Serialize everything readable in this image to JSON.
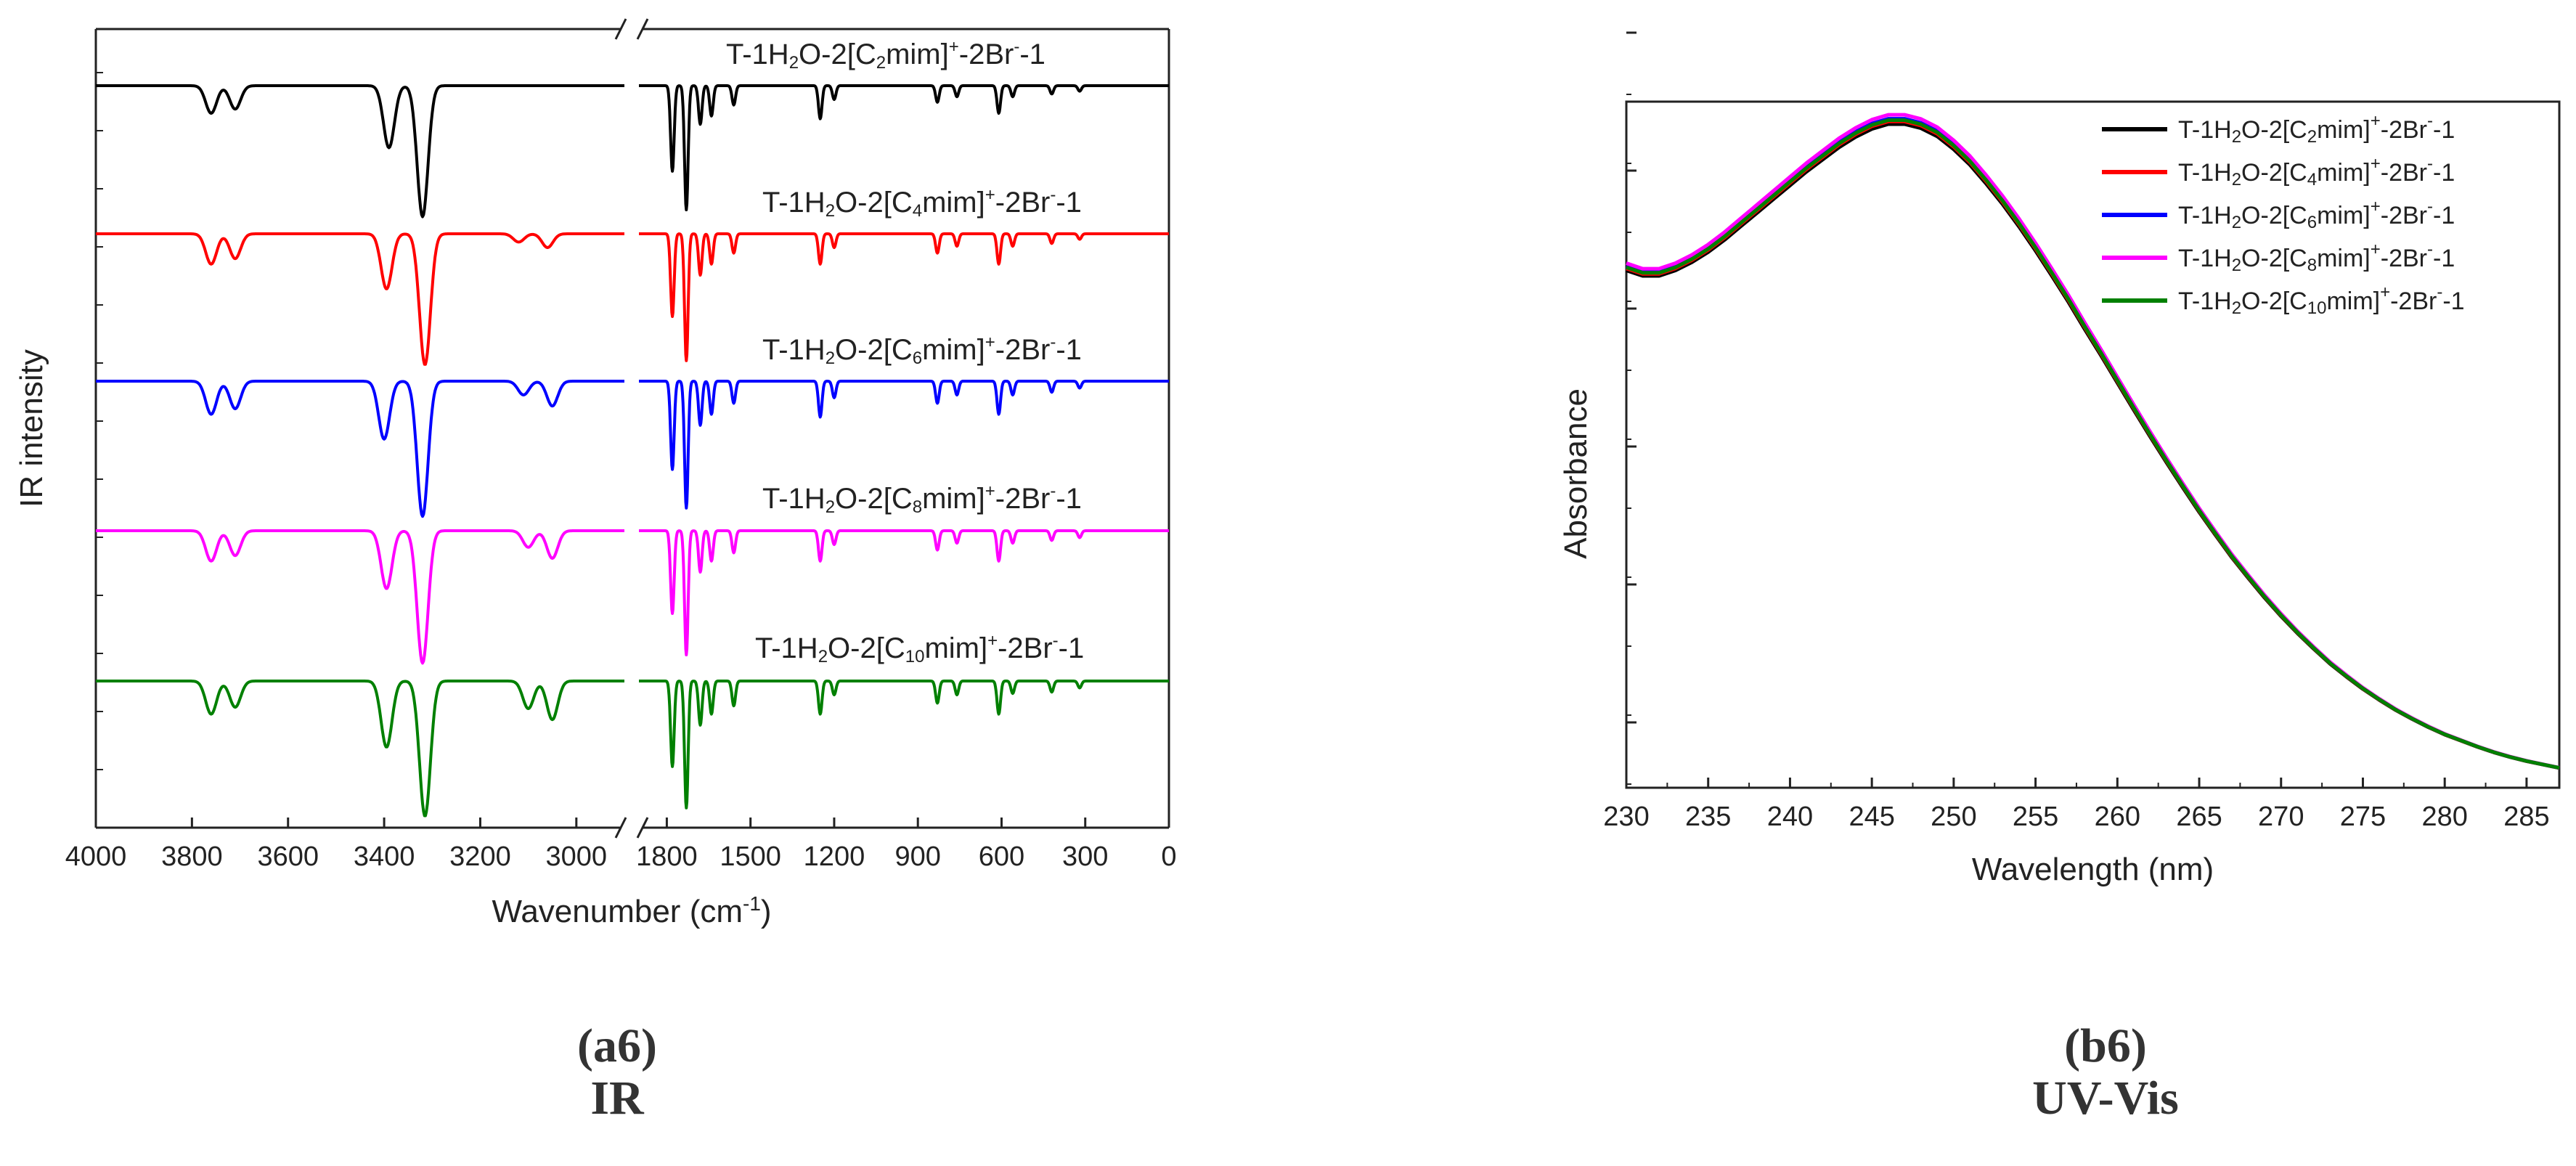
{
  "chart_data": [
    {
      "type": "line",
      "caption_label": "a6",
      "caption_title": "IR",
      "xlabel_main": "Wavenumber (cm",
      "xlabel_sup": "-1",
      "xlabel_end": ")",
      "ylabel": "IR intensity",
      "x_segment_left": {
        "range": [
          4000,
          2900
        ],
        "ticks": [
          "4000",
          "3800",
          "3600",
          "3400",
          "3200",
          "3000"
        ],
        "tick_values": [
          4000,
          3800,
          3600,
          3400,
          3200,
          3000
        ]
      },
      "x_segment_right": {
        "range": [
          1900,
          0
        ],
        "ticks": [
          "1800",
          "1500",
          "1200",
          "900",
          "600",
          "300",
          "0"
        ],
        "tick_values": [
          1800,
          1500,
          1200,
          900,
          600,
          300,
          0
        ]
      },
      "series": [
        {
          "name": "C2",
          "color": "#000000",
          "label_parts": [
            "T-1H",
            "2",
            "O-2[C",
            "2",
            "mim]",
            "+",
            "-2Br",
            "-",
            "-1"
          ],
          "peaks": [
            [
              3760,
              0.2
            ],
            [
              3710,
              0.17
            ],
            [
              3390,
              0.45
            ],
            [
              3320,
              0.95
            ],
            [
              1780,
              0.62
            ],
            [
              1730,
              0.9
            ],
            [
              1680,
              0.28
            ],
            [
              1640,
              0.22
            ],
            [
              1560,
              0.14
            ],
            [
              1250,
              0.24
            ],
            [
              1200,
              0.1
            ],
            [
              830,
              0.12
            ],
            [
              760,
              0.08
            ],
            [
              610,
              0.2
            ],
            [
              560,
              0.08
            ],
            [
              420,
              0.06
            ],
            [
              320,
              0.04
            ]
          ]
        },
        {
          "name": "C4",
          "color": "#ff0000",
          "label_parts": [
            "T-1H",
            "2",
            "O-2[C",
            "4",
            "mim]",
            "+",
            "-2Br",
            "-",
            "-1"
          ],
          "peaks": [
            [
              3760,
              0.22
            ],
            [
              3710,
              0.18
            ],
            [
              3395,
              0.4
            ],
            [
              3315,
              0.95
            ],
            [
              3120,
              0.06
            ],
            [
              3060,
              0.1
            ],
            [
              1780,
              0.6
            ],
            [
              1730,
              0.92
            ],
            [
              1680,
              0.3
            ],
            [
              1640,
              0.22
            ],
            [
              1560,
              0.14
            ],
            [
              1250,
              0.22
            ],
            [
              1200,
              0.1
            ],
            [
              830,
              0.14
            ],
            [
              760,
              0.09
            ],
            [
              610,
              0.22
            ],
            [
              560,
              0.09
            ],
            [
              420,
              0.07
            ],
            [
              320,
              0.04
            ]
          ]
        },
        {
          "name": "C6",
          "color": "#0000ff",
          "label_parts": [
            "T-1H",
            "2",
            "O-2[C",
            "6",
            "mim]",
            "+",
            "-2Br",
            "-",
            "-1"
          ],
          "peaks": [
            [
              3760,
              0.24
            ],
            [
              3710,
              0.2
            ],
            [
              3400,
              0.42
            ],
            [
              3320,
              0.98
            ],
            [
              3110,
              0.1
            ],
            [
              3050,
              0.18
            ],
            [
              1780,
              0.64
            ],
            [
              1730,
              0.92
            ],
            [
              1680,
              0.32
            ],
            [
              1640,
              0.24
            ],
            [
              1560,
              0.16
            ],
            [
              1250,
              0.26
            ],
            [
              1200,
              0.12
            ],
            [
              830,
              0.16
            ],
            [
              760,
              0.1
            ],
            [
              610,
              0.24
            ],
            [
              560,
              0.1
            ],
            [
              420,
              0.08
            ],
            [
              320,
              0.05
            ]
          ]
        },
        {
          "name": "C8",
          "color": "#ff00ff",
          "label_parts": [
            "T-1H",
            "2",
            "O-2[C",
            "8",
            "mim]",
            "+",
            "-2Br",
            "-",
            "-1"
          ],
          "peaks": [
            [
              3760,
              0.22
            ],
            [
              3710,
              0.18
            ],
            [
              3395,
              0.42
            ],
            [
              3320,
              0.96
            ],
            [
              3100,
              0.12
            ],
            [
              3050,
              0.2
            ],
            [
              1780,
              0.6
            ],
            [
              1730,
              0.9
            ],
            [
              1680,
              0.3
            ],
            [
              1640,
              0.22
            ],
            [
              1560,
              0.16
            ],
            [
              1250,
              0.22
            ],
            [
              1200,
              0.1
            ],
            [
              830,
              0.14
            ],
            [
              760,
              0.09
            ],
            [
              610,
              0.22
            ],
            [
              560,
              0.09
            ],
            [
              420,
              0.07
            ],
            [
              320,
              0.05
            ]
          ]
        },
        {
          "name": "C10",
          "color": "#008000",
          "label_parts": [
            "T-1H",
            "2",
            "O-2[C",
            "10",
            "mim]",
            "+",
            "-2Br",
            "-",
            "-1"
          ],
          "peaks": [
            [
              3760,
              0.24
            ],
            [
              3710,
              0.19
            ],
            [
              3395,
              0.48
            ],
            [
              3315,
              0.98
            ],
            [
              3100,
              0.2
            ],
            [
              3050,
              0.28
            ],
            [
              1780,
              0.62
            ],
            [
              1730,
              0.92
            ],
            [
              1680,
              0.32
            ],
            [
              1640,
              0.24
            ],
            [
              1560,
              0.18
            ],
            [
              1250,
              0.24
            ],
            [
              1200,
              0.1
            ],
            [
              830,
              0.16
            ],
            [
              760,
              0.1
            ],
            [
              610,
              0.24
            ],
            [
              560,
              0.09
            ],
            [
              420,
              0.08
            ],
            [
              320,
              0.05
            ]
          ]
        }
      ]
    },
    {
      "type": "line",
      "caption_label": "b6",
      "caption_title": "UV-Vis",
      "xlabel": "Wavelength (nm)",
      "ylabel": "Absorbance",
      "xlim": [
        230,
        287
      ],
      "ylim": [
        0,
        1
      ],
      "xticks": [
        "230",
        "235",
        "240",
        "245",
        "250",
        "255",
        "260",
        "265",
        "270",
        "275",
        "280",
        "285"
      ],
      "xtick_values": [
        230,
        235,
        240,
        245,
        250,
        255,
        260,
        265,
        270,
        275,
        280,
        285
      ],
      "x": [
        230,
        231,
        232,
        233,
        234,
        235,
        236,
        237,
        238,
        239,
        240,
        241,
        242,
        243,
        244,
        245,
        246,
        247,
        248,
        249,
        250,
        251,
        252,
        253,
        254,
        255,
        256,
        257,
        258,
        259,
        260,
        261,
        262,
        263,
        264,
        265,
        266,
        267,
        268,
        269,
        270,
        271,
        272,
        273,
        274,
        275,
        276,
        277,
        278,
        279,
        280,
        281,
        282,
        283,
        284,
        285,
        286,
        287
      ],
      "y": [
        0.76,
        0.752,
        0.752,
        0.76,
        0.772,
        0.787,
        0.805,
        0.825,
        0.845,
        0.865,
        0.885,
        0.905,
        0.923,
        0.941,
        0.956,
        0.968,
        0.975,
        0.975,
        0.969,
        0.957,
        0.938,
        0.915,
        0.887,
        0.857,
        0.824,
        0.789,
        0.752,
        0.714,
        0.674,
        0.635,
        0.595,
        0.555,
        0.516,
        0.478,
        0.441,
        0.405,
        0.371,
        0.338,
        0.308,
        0.279,
        0.252,
        0.227,
        0.204,
        0.182,
        0.163,
        0.145,
        0.129,
        0.114,
        0.101,
        0.089,
        0.078,
        0.069,
        0.06,
        0.052,
        0.045,
        0.039,
        0.034,
        0.029
      ],
      "series": [
        {
          "name": "C2",
          "color": "#000000",
          "offset": -0.008,
          "label_parts": [
            "T-1H",
            "2",
            "O-2[C",
            "2",
            "mim]",
            "+",
            "-2Br",
            "-",
            "-1"
          ]
        },
        {
          "name": "C4",
          "color": "#ff0000",
          "offset": -0.004,
          "label_parts": [
            "T-1H",
            "2",
            "O-2[C",
            "4",
            "mim]",
            "+",
            "-2Br",
            "-",
            "-1"
          ]
        },
        {
          "name": "C6",
          "color": "#0000ff",
          "offset": 0.0,
          "label_parts": [
            "T-1H",
            "2",
            "O-2[C",
            "6",
            "mim]",
            "+",
            "-2Br",
            "-",
            "-1"
          ]
        },
        {
          "name": "C8",
          "color": "#ff00ff",
          "offset": 0.006,
          "label_parts": [
            "T-1H",
            "2",
            "O-2[C",
            "8",
            "mim]",
            "+",
            "-2Br",
            "-",
            "-1"
          ]
        },
        {
          "name": "C10",
          "color": "#008000",
          "offset": -0.002,
          "label_parts": [
            "T-1H",
            "2",
            "O-2[C",
            "10",
            "mim]",
            "+",
            "-2Br",
            "-",
            "-1"
          ]
        }
      ],
      "legend_position": "top-right"
    }
  ]
}
